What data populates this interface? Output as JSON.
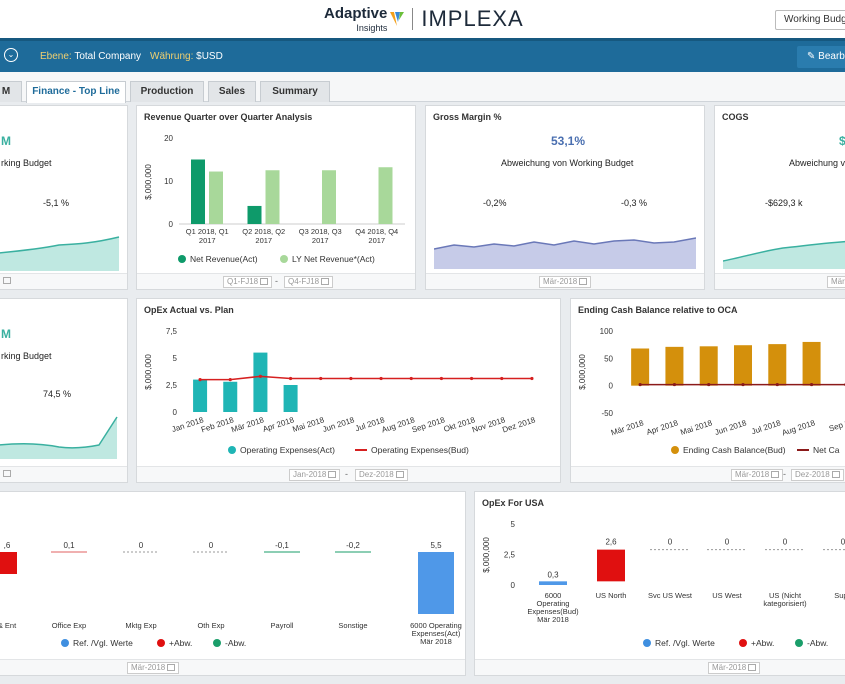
{
  "header": {
    "logo_text": "Adaptive",
    "logo_sub": "Insights",
    "brand": "IMPLEXA",
    "budget_select": "Working Budget"
  },
  "toolbar": {
    "ebene_label": "Ebene:",
    "ebene_value": "Total Company",
    "waehrung_label": "Währung:",
    "waehrung_value": "$USD",
    "edit_label": "Bearb"
  },
  "tabs": [
    {
      "label": "M"
    },
    {
      "label": "Finance - Top Line"
    },
    {
      "label": "Production"
    },
    {
      "label": "Sales"
    },
    {
      "label": "Summary"
    }
  ],
  "row1": {
    "left": {
      "big": "M",
      "sub": "rking Budget",
      "pct": "-5,1 %"
    },
    "revenue": {
      "title": "Revenue Quarter over Quarter Analysis",
      "date_from": "Q1-FJ18",
      "date_to": "Q4-FJ18",
      "date_sep": "-"
    },
    "gross_margin": {
      "title": "Gross Margin %",
      "big": "53,1%",
      "sub": "Abweichung von Working Budget",
      "v1": "-0,2%",
      "v2": "-0,3 %",
      "date": "Mär-2018"
    },
    "cogs": {
      "title": "COGS",
      "big": "$",
      "sub": "Abweichung v",
      "v1": "-$629,3 k",
      "date": "Mär"
    }
  },
  "row2": {
    "left": {
      "big": "M",
      "sub": "rking Budget",
      "pct": "74,5 %"
    },
    "opex": {
      "title": "OpEx Actual vs. Plan",
      "date_from": "Jan-2018",
      "date_to": "Dez-2018",
      "date_sep": "-"
    },
    "cash": {
      "title": "Ending Cash Balance relative to OCA",
      "date_from": "Mär-2018",
      "date_to": "Dez-2018",
      "date_sep": "-"
    }
  },
  "row3": {
    "left": {
      "date": "Mär-2018"
    },
    "opex_usa": {
      "title": "OpEx For USA",
      "date": "Mär-2018"
    }
  },
  "chart_data": [
    {
      "type": "bar",
      "title": "Revenue Quarter over Quarter Analysis",
      "ylabel": "$,000,000",
      "ylim": [
        0,
        20
      ],
      "yticks": [
        "0",
        "10",
        "20"
      ],
      "categories": [
        "Q1 2018, Q1 2017",
        "Q2 2018, Q2 2017",
        "Q3 2018, Q3 2017",
        "Q4 2018, Q4 2017"
      ],
      "series": [
        {
          "name": "Net Revenue(Act)",
          "color": "#0e9a6a",
          "values": [
            15,
            4.2,
            null,
            null
          ]
        },
        {
          "name": "LY Net Revenue*(Act)",
          "color": "#a8d89a",
          "values": [
            12.2,
            12.5,
            12.5,
            13.2
          ]
        }
      ]
    },
    {
      "type": "bar",
      "title": "OpEx Actual vs. Plan",
      "ylabel": "$,000,000",
      "ylim": [
        0,
        7.5
      ],
      "yticks": [
        "0",
        "2,5",
        "5",
        "7,5"
      ],
      "categories": [
        "Jan 2018",
        "Feb 2018",
        "Mär 2018",
        "Apr 2018",
        "Mai 2018",
        "Jun 2018",
        "Jul 2018",
        "Aug 2018",
        "Sep 2018",
        "Okt 2018",
        "Nov 2018",
        "Dez 2018"
      ],
      "series": [
        {
          "name": "Operating Expenses(Act)",
          "color": "#1fb5b5",
          "values": [
            3.0,
            2.8,
            5.5,
            2.5,
            null,
            null,
            null,
            null,
            null,
            null,
            null,
            null
          ]
        },
        {
          "name": "Operating Expenses(Bud)",
          "color": "#d62020",
          "values": [
            3.0,
            3.0,
            3.3,
            3.1,
            3.1,
            3.1,
            3.1,
            3.1,
            3.1,
            3.1,
            3.1,
            3.1
          ]
        }
      ]
    },
    {
      "type": "bar",
      "title": "Ending Cash Balance relative to OCA",
      "ylabel": "$,000,000",
      "ylim": [
        -50,
        100
      ],
      "yticks": [
        "-50",
        "0",
        "50",
        "100"
      ],
      "categories": [
        "Mär 2018",
        "Apr 2018",
        "Mai 2018",
        "Jun 2018",
        "Jul 2018",
        "Aug 2018",
        "Sep 2"
      ],
      "series": [
        {
          "name": "Ending Cash Balance(Bud)",
          "color": "#d4900c",
          "values": [
            68,
            71,
            72,
            74,
            76,
            80,
            null
          ]
        },
        {
          "name": "Net Ca",
          "color": "#8b1a1a",
          "values": [
            2,
            2,
            2,
            2,
            2,
            2,
            2
          ]
        }
      ]
    },
    {
      "type": "bar",
      "title": "",
      "categories": [
        "& Ent",
        "Office Exp",
        "Mktg Exp",
        "Oth Exp",
        "Payroll",
        "Sonstige",
        "6000 Operating Expenses(Act) Mär 2018"
      ],
      "value_labels": [
        ",6",
        "0,1",
        "0",
        "0",
        "-0,1",
        "-0,2",
        "5,5"
      ],
      "legend": [
        "Ref. /Vgl. Werte",
        "+Abw.",
        "-Abw."
      ],
      "legend_colors": [
        "#3f8fe0",
        "#e01010",
        "#1a9e6a"
      ]
    },
    {
      "type": "bar",
      "title": "OpEx For USA",
      "ylabel": "$,000,000",
      "ylim": [
        0,
        5
      ],
      "yticks": [
        "0",
        "2,5",
        "5"
      ],
      "categories": [
        "6000 Operating Expenses(Bud) Mär 2018",
        "US North",
        "Svc US West",
        "US West",
        "US (Nicht kategorisiert)",
        "Supp"
      ],
      "value_labels": [
        "0,3",
        "2,6",
        "0",
        "0",
        "0",
        "0"
      ],
      "legend": [
        "Ref. /Vgl. Werte",
        "+Abw.",
        "-Abw."
      ],
      "legend_colors": [
        "#3f8fe0",
        "#e01010",
        "#1a9e6a"
      ]
    }
  ]
}
